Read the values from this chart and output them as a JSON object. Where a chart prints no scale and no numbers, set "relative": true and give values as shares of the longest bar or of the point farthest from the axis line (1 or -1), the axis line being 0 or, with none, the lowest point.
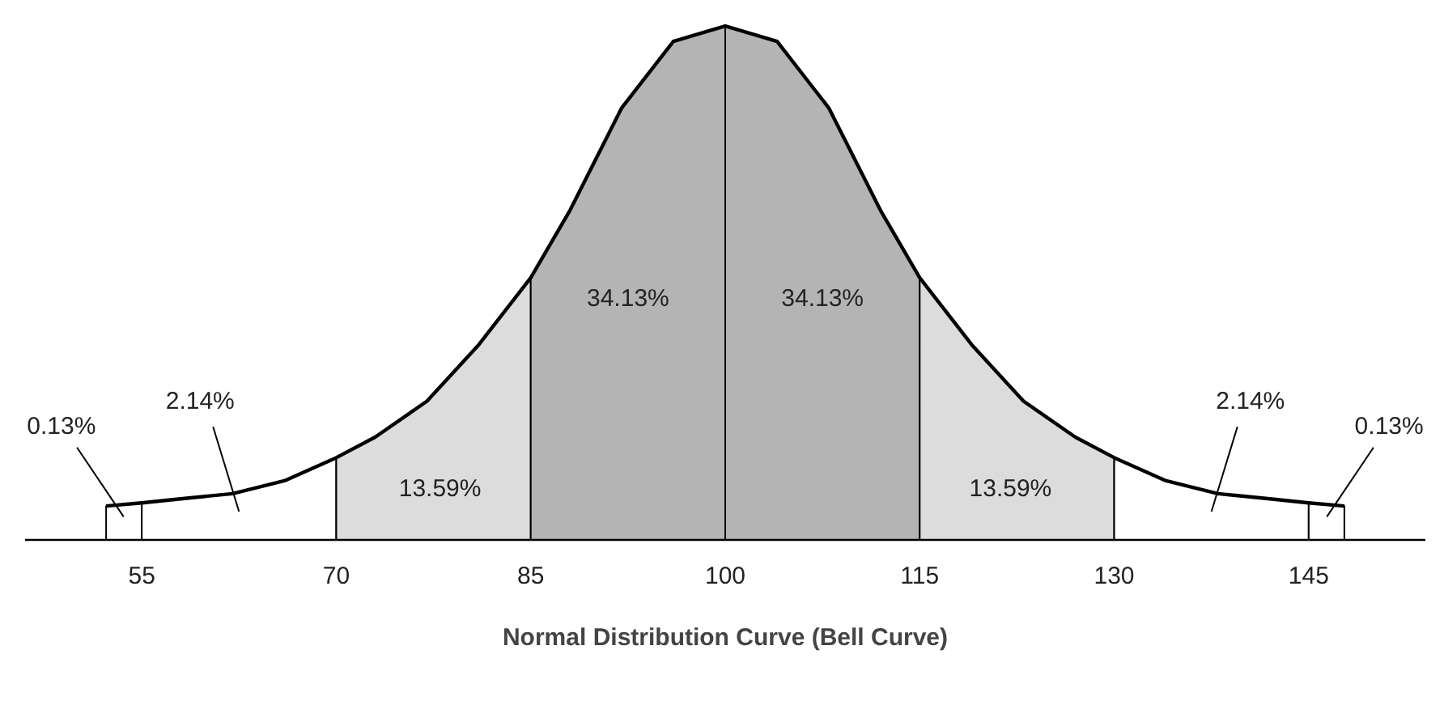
{
  "chart_data": {
    "type": "area",
    "relative": true,
    "xlabel": "Normal Distribution Curve (Bell Curve)",
    "xlim": [
      46,
      154
    ],
    "xticks": [
      55,
      70,
      85,
      100,
      115,
      130,
      145
    ],
    "grid": false,
    "tick_labels": "x",
    "series": [
      {
        "color": "#ffffff",
        "x": [
          52.25,
          55
        ],
        "values": [
          0.066,
          0.072
        ]
      },
      {
        "color": "#ffffff",
        "x": [
          55,
          58,
          62,
          66,
          70
        ],
        "values": [
          0.072,
          0.08,
          0.09,
          0.115,
          0.16
        ]
      },
      {
        "color": "#dcdcdc",
        "x": [
          70,
          73,
          77,
          81,
          85
        ],
        "values": [
          0.16,
          0.2,
          0.27,
          0.38,
          0.51
        ]
      },
      {
        "color": "#b4b4b4",
        "x": [
          85,
          88,
          92,
          96,
          100
        ],
        "values": [
          0.51,
          0.64,
          0.84,
          0.97,
          1
        ]
      },
      {
        "color": "#b4b4b4",
        "x": [
          100,
          104,
          108,
          112,
          115
        ],
        "values": [
          1,
          0.97,
          0.84,
          0.64,
          0.51
        ]
      },
      {
        "color": "#dcdcdc",
        "x": [
          115,
          119,
          123,
          127,
          130
        ],
        "values": [
          0.51,
          0.38,
          0.27,
          0.2,
          0.16
        ]
      },
      {
        "color": "#ffffff",
        "x": [
          130,
          134,
          138,
          142,
          145
        ],
        "values": [
          0.16,
          0.115,
          0.09,
          0.08,
          0.072
        ]
      },
      {
        "color": "#ffffff",
        "x": [
          145,
          147.75
        ],
        "values": [
          0.072,
          0.066
        ]
      },
      {
        "type": "line",
        "color": "#000000",
        "x": [
          52.25,
          55,
          58,
          62,
          66,
          70,
          73,
          77,
          81,
          85,
          88,
          92,
          96,
          100,
          104,
          108,
          112,
          115,
          119,
          123,
          127,
          130,
          134,
          138,
          142,
          145,
          147.75
        ],
        "values": [
          0.066,
          0.072,
          0.08,
          0.09,
          0.115,
          0.16,
          0.2,
          0.27,
          0.38,
          0.51,
          0.64,
          0.84,
          0.97,
          1,
          0.97,
          0.84,
          0.64,
          0.51,
          0.38,
          0.27,
          0.2,
          0.16,
          0.115,
          0.09,
          0.08,
          0.072,
          0.066
        ]
      }
    ],
    "annotations": [
      "0.13%",
      "2.14%",
      "13.59%",
      "34.13%",
      "34.13%",
      "13.59%",
      "2.14%",
      "0.13%"
    ]
  }
}
